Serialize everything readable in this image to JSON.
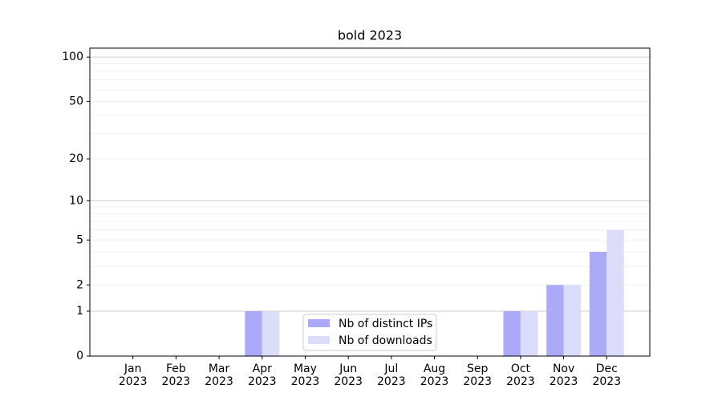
{
  "chart_data": {
    "type": "bar",
    "title": "bold 2023",
    "scale": "log1p",
    "categories": [
      "Jan\n2023",
      "Feb\n2023",
      "Mar\n2023",
      "Apr\n2023",
      "May\n2023",
      "Jun\n2023",
      "Jul\n2023",
      "Aug\n2023",
      "Sep\n2023",
      "Oct\n2023",
      "Nov\n2023",
      "Dec\n2023"
    ],
    "series": [
      {
        "name": "Nb of distinct IPs",
        "color": "#aaaaf9",
        "values": [
          0,
          0,
          0,
          1,
          0,
          0,
          0,
          0,
          0,
          1,
          2,
          4
        ]
      },
      {
        "name": "Nb of downloads",
        "color": "#dcdcfb",
        "values": [
          0,
          0,
          0,
          1,
          0,
          0,
          0,
          0,
          0,
          1,
          2,
          6
        ]
      }
    ],
    "ylim": [
      0,
      115
    ],
    "yticks": [
      0,
      1,
      2,
      5,
      10,
      20,
      50,
      100
    ],
    "grid_major": [
      1,
      10,
      100
    ],
    "grid_minor": [
      2,
      3,
      4,
      5,
      6,
      7,
      8,
      9,
      20,
      30,
      40,
      50,
      60,
      70,
      80,
      90
    ],
    "legend": "lower center"
  }
}
